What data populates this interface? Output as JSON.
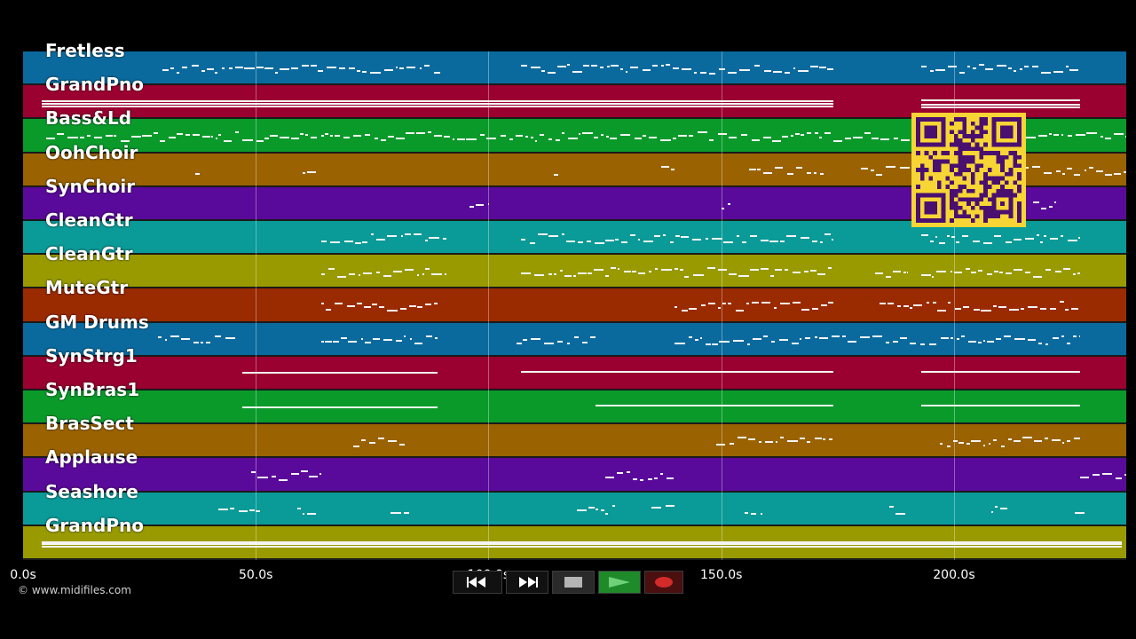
{
  "tracks": [
    {
      "name": "Fretless",
      "color": "#0a6a9e"
    },
    {
      "name": "GrandPno",
      "color": "#9a0030"
    },
    {
      "name": "Bass&Ld",
      "color": "#0a9a2a"
    },
    {
      "name": "OohChoir",
      "color": "#9a6200"
    },
    {
      "name": "SynChoir",
      "color": "#5a0a9a"
    },
    {
      "name": "CleanGtr",
      "color": "#0a9a98"
    },
    {
      "name": "CleanGtr",
      "color": "#989a00"
    },
    {
      "name": "MuteGtr",
      "color": "#9a2a00"
    },
    {
      "name": "GM Drums",
      "color": "#0a6a9e"
    },
    {
      "name": "SynStrg1",
      "color": "#9a0030"
    },
    {
      "name": "SynBras1",
      "color": "#0a9a2a"
    },
    {
      "name": "BrasSect",
      "color": "#9a6200"
    },
    {
      "name": "Applause",
      "color": "#5a0a9a"
    },
    {
      "name": "Seashore",
      "color": "#0a9a98"
    },
    {
      "name": "GrandPno",
      "color": "#989a00"
    }
  ],
  "x_axis": {
    "ticks": [
      "0.0s",
      "50.0s",
      "100.0s",
      "150.0s",
      "200.0s"
    ],
    "tick_values": [
      0,
      50,
      100,
      150,
      200
    ],
    "max_seconds": 237
  },
  "copyright": "© www.midifiles.com",
  "transport": {
    "rewind": "rewind-icon",
    "fast_forward": "fast-forward-icon",
    "stop": "stop-icon",
    "play": "play-icon",
    "record": "record-icon",
    "play_color": "#1f8a2a",
    "record_color": "#d42a2a"
  },
  "qr": {
    "color": "#f6d534",
    "ink": "#4a1070"
  }
}
